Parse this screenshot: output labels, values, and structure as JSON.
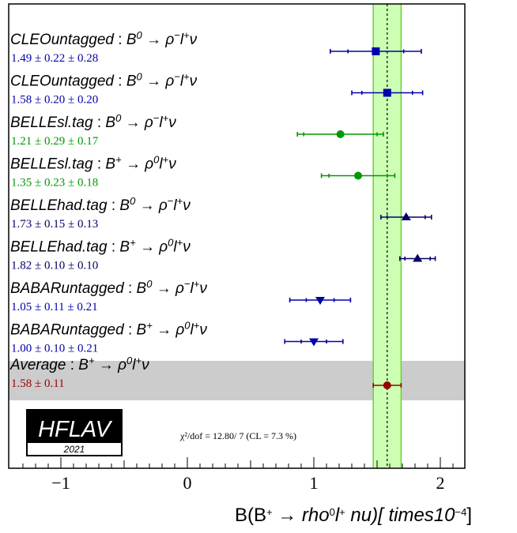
{
  "chart_data": {
    "type": "scatter",
    "subtype": "forest-plot",
    "xlabel_parts": [
      "B(B",
      "+",
      " → ",
      "rho",
      "0",
      "l",
      "+",
      " ",
      "nu)[",
      "times10",
      "−4",
      "]"
    ],
    "xlim": [
      -1.4,
      2.2
    ],
    "xticks": [
      {
        "value": -1,
        "label": "−1"
      },
      {
        "value": 0,
        "label": "0"
      },
      {
        "value": 1,
        "label": "1"
      },
      {
        "value": 2,
        "label": "2"
      }
    ],
    "band": {
      "center": 1.58,
      "low": 1.47,
      "high": 1.69,
      "color": "#ccffb3",
      "edge": "#6ecf3a"
    },
    "measurements": [
      {
        "experiment": "CLEOuntagged",
        "initial": "B",
        "initial_sup": "0",
        "final": "ρ",
        "final_sup": "−",
        "lepton": "l",
        "lepton_sup": "+",
        "neutrino": "ν",
        "value_text": "1.49 ± 0.22 ± 0.28",
        "central": 1.49,
        "stat": 0.22,
        "total": 0.36,
        "marker": "square",
        "color": "#0000aa"
      },
      {
        "experiment": "CLEOuntagged",
        "initial": "B",
        "initial_sup": "0",
        "final": "ρ",
        "final_sup": "−",
        "lepton": "l",
        "lepton_sup": "+",
        "neutrino": "ν",
        "value_text": "1.58 ± 0.20 ± 0.20",
        "central": 1.58,
        "stat": 0.2,
        "total": 0.28,
        "marker": "square",
        "color": "#0000aa"
      },
      {
        "experiment": "BELLEsl.tag",
        "initial": "B",
        "initial_sup": "0",
        "final": "ρ",
        "final_sup": "−",
        "lepton": "l",
        "lepton_sup": "+",
        "neutrino": "ν",
        "value_text": "1.21 ± 0.29 ± 0.17",
        "central": 1.21,
        "stat": 0.29,
        "total": 0.34,
        "marker": "circle",
        "color": "#009900"
      },
      {
        "experiment": "BELLEsl.tag",
        "initial": "B",
        "initial_sup": "+",
        "final": "ρ",
        "final_sup": "0",
        "lepton": "l",
        "lepton_sup": "+",
        "neutrino": "ν",
        "value_text": "1.35 ± 0.23 ± 0.18",
        "central": 1.35,
        "stat": 0.23,
        "total": 0.29,
        "marker": "circle",
        "color": "#009900"
      },
      {
        "experiment": "BELLEhad.tag",
        "initial": "B",
        "initial_sup": "0",
        "final": "ρ",
        "final_sup": "−",
        "lepton": "l",
        "lepton_sup": "+",
        "neutrino": "ν",
        "value_text": "1.73 ± 0.15 ± 0.13",
        "central": 1.73,
        "stat": 0.15,
        "total": 0.2,
        "marker": "triangle-up",
        "color": "#000066"
      },
      {
        "experiment": "BELLEhad.tag",
        "initial": "B",
        "initial_sup": "+",
        "final": "ρ",
        "final_sup": "0",
        "lepton": "l",
        "lepton_sup": "+",
        "neutrino": "ν",
        "value_text": "1.82 ± 0.10 ± 0.10",
        "central": 1.82,
        "stat": 0.1,
        "total": 0.14,
        "marker": "triangle-up",
        "color": "#000066"
      },
      {
        "experiment": "BABARuntagged",
        "initial": "B",
        "initial_sup": "0",
        "final": "ρ",
        "final_sup": "−",
        "lepton": "l",
        "lepton_sup": "+",
        "neutrino": "ν",
        "value_text": "1.05 ± 0.11 ± 0.21",
        "central": 1.05,
        "stat": 0.11,
        "total": 0.24,
        "marker": "triangle-down",
        "color": "#0000aa"
      },
      {
        "experiment": "BABARuntagged",
        "initial": "B",
        "initial_sup": "+",
        "final": "ρ",
        "final_sup": "0",
        "lepton": "l",
        "lepton_sup": "+",
        "neutrino": "ν",
        "value_text": "1.00 ± 0.10 ± 0.21",
        "central": 1.0,
        "stat": 0.1,
        "total": 0.23,
        "marker": "triangle-down",
        "color": "#0000aa"
      }
    ],
    "average": {
      "experiment": "Average",
      "initial": "B",
      "initial_sup": "+",
      "final": "ρ",
      "final_sup": "0",
      "lepton": "l",
      "lepton_sup": "+",
      "neutrino": "ν",
      "value_text": "1.58 ± 0.11",
      "central": 1.58,
      "total": 0.11,
      "marker": "circle",
      "color": "#990000",
      "shading": "#cccccc"
    },
    "chi2_text": "χ²/dof = 12.80/ 7 (CL = 7.3 %)",
    "logo": {
      "name": "HFLAV",
      "year": "2021"
    }
  }
}
